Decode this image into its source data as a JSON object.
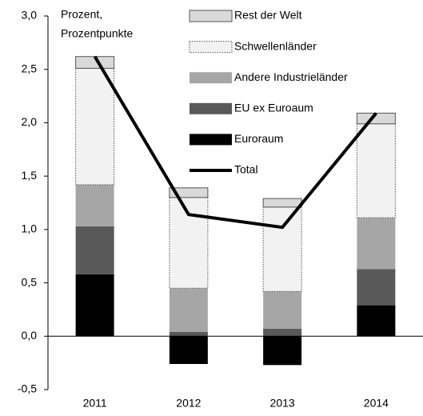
{
  "chart_data": {
    "type": "bar",
    "stacked": true,
    "y_label": [
      "Prozent,",
      "Prozentpunkte"
    ],
    "categories": [
      "2011",
      "2012",
      "2013",
      "2014"
    ],
    "series": [
      {
        "name": "Euroraum",
        "color": "#000000",
        "values": [
          0.58,
          -0.26,
          -0.27,
          0.29
        ]
      },
      {
        "name": "EU ex Euroaum",
        "color": "#595959",
        "values": [
          0.45,
          0.04,
          0.07,
          0.34
        ]
      },
      {
        "name": "Andere Industrieländer",
        "color": "#a6a6a6",
        "values": [
          0.39,
          0.41,
          0.35,
          0.48
        ]
      },
      {
        "name": "Schwellenländer",
        "color": "#f2f2f2",
        "dotted": true,
        "values": [
          1.09,
          0.85,
          0.79,
          0.88
        ]
      },
      {
        "name": "Rest der Welt",
        "color": "#d9d9d9",
        "values": [
          0.11,
          0.09,
          0.08,
          0.1
        ]
      },
      {
        "name": "Total",
        "color": "#000000",
        "kind": "line",
        "values": [
          2.62,
          1.14,
          1.02,
          2.09
        ]
      }
    ],
    "ylim": [
      -0.5,
      3.0
    ],
    "yticks": [
      {
        "value": -0.5,
        "label": "-0,5"
      },
      {
        "value": 0,
        "label": "0,0"
      },
      {
        "value": 0.5,
        "label": "0,5"
      },
      {
        "value": 1.0,
        "label": "1,0"
      },
      {
        "value": 1.5,
        "label": "1,5"
      },
      {
        "value": 2.0,
        "label": "2,0"
      },
      {
        "value": 2.5,
        "label": "2,5"
      },
      {
        "value": 3.0,
        "label": "3,0"
      }
    ],
    "grid": false
  }
}
